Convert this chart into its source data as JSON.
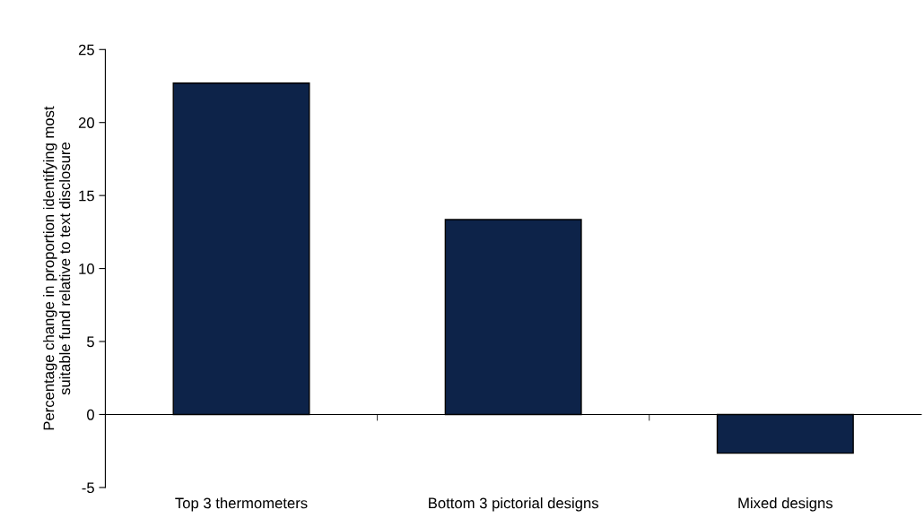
{
  "chart_data": {
    "type": "bar",
    "ylabel": "Percentage change in proportion identifying most\nsuitable fund relative to text disclosure",
    "categories": [
      "Top 3 thermometers",
      "Bottom 3 pictorial designs",
      "Mixed designs"
    ],
    "values": [
      22.7,
      13.35,
      -2.65
    ],
    "color": "#0d2349",
    "ylim": [
      -5,
      25
    ],
    "yticks": [
      -5,
      0,
      5,
      10,
      15,
      20,
      25
    ]
  }
}
